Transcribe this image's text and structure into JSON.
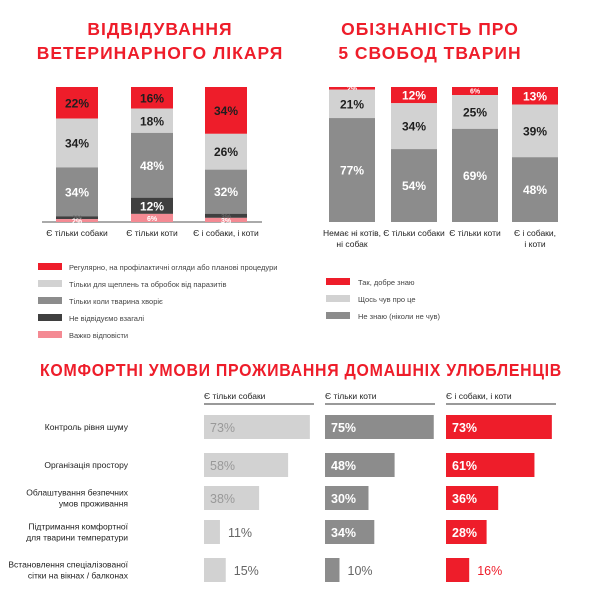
{
  "colors": {
    "red": "#ee1d2a",
    "light_gray": "#d2d2d2",
    "mid_gray": "#8c8c8c",
    "dark_gray": "#3f3f3f",
    "pink": "#f48a93",
    "text": "#1e1e1e",
    "white": "#ffffff"
  },
  "chart_data": [
    {
      "type": "bar",
      "stacked": true,
      "title": "ВІДВІДУВАННЯ ВЕТЕРИНАРНОГО ЛІКАРЯ",
      "title_lines": [
        "ВІДВІДУВАННЯ",
        "ВЕТЕРИНАРНОГО ЛІКАРЯ"
      ],
      "categories": [
        "Є тільки собаки",
        "Є тільки коти",
        "Є і собаки, і коти"
      ],
      "series": [
        {
          "name": "Регулярно, на профілактичні огляди або планові процедури",
          "color": "#ee1d2a",
          "values": [
            22,
            16,
            34
          ],
          "labels": [
            "22%",
            "16%",
            "34%"
          ]
        },
        {
          "name": "Тільки для щеплень та обробок від паразитів",
          "color": "#d2d2d2",
          "values": [
            34,
            18,
            26
          ],
          "labels": [
            "34%",
            "18%",
            "26%"
          ]
        },
        {
          "name": "Тільки коли тварина хворіє",
          "color": "#8c8c8c",
          "values": [
            34,
            48,
            32
          ],
          "labels": [
            "34%",
            "48%",
            "32%"
          ]
        },
        {
          "name": "Не відвідуємо взагалі",
          "color": "#3f3f3f",
          "values": [
            2,
            12,
            3
          ],
          "labels": [
            "2%",
            "12%",
            "3%"
          ]
        },
        {
          "name": "Важко відповісти",
          "color": "#f48a93",
          "values": [
            2,
            6,
            3
          ],
          "labels": [
            "2%",
            "6%",
            "3%"
          ]
        }
      ],
      "legend_position": "bottom"
    },
    {
      "type": "bar",
      "stacked": true,
      "title": "ОБІЗНАНІСТЬ ПРО 5 СВОБОД ТВАРИН",
      "title_lines": [
        "ОБІЗНАНІСТЬ ПРО",
        "5 СВОБОД ТВАРИН"
      ],
      "categories": [
        "Немає ні котів, ні собак",
        "Є тільки собаки",
        "Є тільки коти",
        "Є і собаки, і коти"
      ],
      "category_lines": [
        [
          "Немає ні котів,",
          "ні собак"
        ],
        [
          "Є тільки собаки"
        ],
        [
          "Є тільки коти"
        ],
        [
          "Є і собаки,",
          "і коти"
        ]
      ],
      "series": [
        {
          "name": "Так, добре знаю",
          "color": "#ee1d2a",
          "values": [
            2,
            12,
            6,
            13
          ],
          "labels": [
            "2%",
            "12%",
            "6%",
            "13%"
          ]
        },
        {
          "name": "Щось чув про це",
          "color": "#d2d2d2",
          "values": [
            21,
            34,
            25,
            39
          ],
          "labels": [
            "21%",
            "34%",
            "25%",
            "39%"
          ]
        },
        {
          "name": "Не знаю (ніколи не чув)",
          "color": "#8c8c8c",
          "values": [
            77,
            54,
            69,
            48
          ],
          "labels": [
            "77%",
            "54%",
            "69%",
            "48%"
          ]
        }
      ],
      "legend_position": "bottom"
    },
    {
      "type": "bar",
      "orientation": "horizontal",
      "title": "КОМФОРТНІ УМОВИ ПРОЖИВАННЯ ДОМАШНІХ УЛЮБЛЕНЦІВ",
      "categories": [
        "Контроль рівня шуму",
        "Організація простору",
        "Облаштування безпечних умов проживання",
        "Підтримання комфортної для тварини температури",
        "Встановлення спеціалізованої сітки на вікнах / балконах"
      ],
      "category_lines": [
        [
          "Контроль рівня шуму"
        ],
        [
          "Організація простору"
        ],
        [
          "Облаштування безпечних",
          "умов проживання"
        ],
        [
          "Підтримання комфортної",
          "для тварини температури"
        ],
        [
          "Встановлення спеціалізованої",
          "сітки на вікнах / балконах"
        ]
      ],
      "series": [
        {
          "name": "Є тільки собаки",
          "color": "#d2d2d2",
          "values": [
            73,
            58,
            38,
            11,
            15
          ],
          "labels": [
            "73%",
            "58%",
            "38%",
            "11%",
            "15%"
          ]
        },
        {
          "name": "Є тільки коти",
          "color": "#8c8c8c",
          "values": [
            75,
            48,
            30,
            34,
            10
          ],
          "labels": [
            "75%",
            "48%",
            "30%",
            "34%",
            "10%"
          ]
        },
        {
          "name": "Є і собаки, і коти",
          "color": "#ee1d2a",
          "values": [
            73,
            61,
            36,
            28,
            16
          ],
          "labels": [
            "73%",
            "61%",
            "36%",
            "28%",
            "16%"
          ]
        }
      ]
    }
  ]
}
